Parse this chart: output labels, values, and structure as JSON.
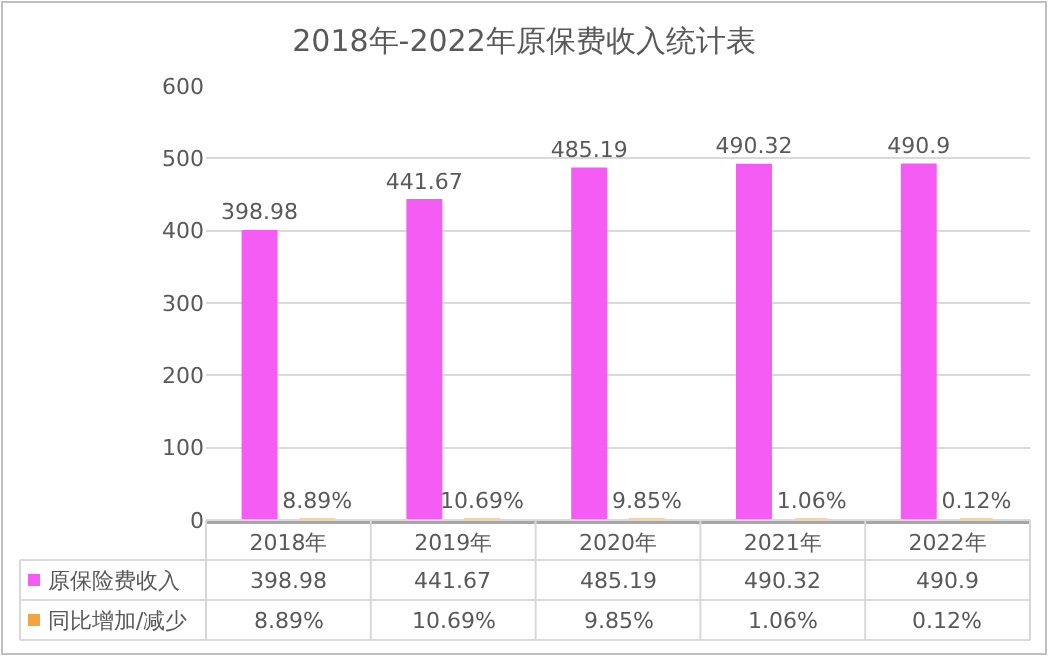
{
  "chart_data": {
    "type": "bar",
    "title": "2018年-2022年原保费收入统计表",
    "categories": [
      "2018年",
      "2019年",
      "2020年",
      "2021年",
      "2022年"
    ],
    "series": [
      {
        "name": "原保险费收入",
        "color": "#f45cf4",
        "values": [
          398.98,
          441.67,
          485.19,
          490.32,
          490.9
        ],
        "value_labels": [
          "398.98",
          "441.67",
          "485.19",
          "490.32",
          "490.9"
        ]
      },
      {
        "name": "同比增加/减少",
        "color": "#f5a340",
        "values": [
          0.0889,
          0.1069,
          0.0985,
          0.0106,
          0.0012
        ],
        "value_labels": [
          "8.89%",
          "10.69%",
          "9.85%",
          "1.06%",
          "0.12%"
        ]
      }
    ],
    "ylim": [
      0,
      600
    ],
    "yticks": [
      0,
      100,
      200,
      300,
      400,
      500,
      600
    ],
    "grid": "y",
    "legend": "bottom"
  }
}
